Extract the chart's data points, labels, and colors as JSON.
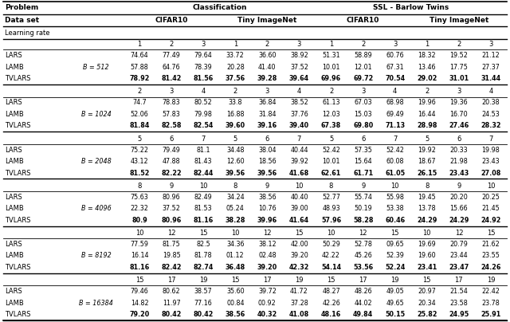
{
  "sections": [
    {
      "batch": "B = 512",
      "lr_labels": [
        "1",
        "2",
        "3",
        "1",
        "2",
        "3",
        "1",
        "2",
        "3",
        "1",
        "2",
        "3"
      ],
      "rows": [
        {
          "name": "LARS",
          "bold": false,
          "values": [
            "74.64",
            "77.49",
            "79.64",
            "33.72",
            "36.60",
            "38.92",
            "51.31",
            "58.89",
            "60.76",
            "18.32",
            "19.52",
            "21.12"
          ]
        },
        {
          "name": "LAMB",
          "bold": false,
          "values": [
            "57.88",
            "64.76",
            "78.39",
            "20.28",
            "41.40",
            "37.52",
            "10.01",
            "12.01",
            "67.31",
            "13.46",
            "17.75",
            "27.37"
          ]
        },
        {
          "name": "TVLARS",
          "bold": true,
          "values": [
            "78.92",
            "81.42",
            "81.56",
            "37.56",
            "39.28",
            "39.64",
            "69.96",
            "69.72",
            "70.54",
            "29.02",
            "31.01",
            "31.44"
          ]
        }
      ]
    },
    {
      "batch": "B = 1024",
      "lr_labels": [
        "2",
        "3",
        "4",
        "2",
        "3",
        "4",
        "2",
        "3",
        "4",
        "2",
        "3",
        "4"
      ],
      "rows": [
        {
          "name": "LARS",
          "bold": false,
          "values": [
            "74.7",
            "78.83",
            "80.52",
            "33.8",
            "36.84",
            "38.52",
            "61.13",
            "67.03",
            "68.98",
            "19.96",
            "19.36",
            "20.38"
          ]
        },
        {
          "name": "LAMB",
          "bold": false,
          "values": [
            "52.06",
            "57.83",
            "79.98",
            "16.88",
            "31.84",
            "37.76",
            "12.03",
            "15.03",
            "69.49",
            "16.44",
            "16.70",
            "24.53"
          ]
        },
        {
          "name": "TVLARS",
          "bold": true,
          "values": [
            "81.84",
            "82.58",
            "82.54",
            "39.60",
            "39.16",
            "39.40",
            "67.38",
            "69.80",
            "71.13",
            "28.98",
            "27.46",
            "28.32"
          ]
        }
      ]
    },
    {
      "batch": "B = 2048",
      "lr_labels": [
        "5",
        "6",
        "7",
        "5",
        "6",
        "7",
        "5",
        "6",
        "7",
        "5",
        "6",
        "7"
      ],
      "rows": [
        {
          "name": "LARS",
          "bold": false,
          "values": [
            "75.22",
            "79.49",
            "81.1",
            "34.48",
            "38.04",
            "40.44",
            "52.42",
            "57.35",
            "52.42",
            "19.92",
            "20.33",
            "19.98"
          ]
        },
        {
          "name": "LAMB",
          "bold": false,
          "values": [
            "43.12",
            "47.88",
            "81.43",
            "12.60",
            "18.56",
            "39.92",
            "10.01",
            "15.64",
            "60.08",
            "18.67",
            "21.98",
            "23.43"
          ]
        },
        {
          "name": "TVLARS",
          "bold": true,
          "values": [
            "81.52",
            "82.22",
            "82.44",
            "39.56",
            "39.56",
            "41.68",
            "62.61",
            "61.71",
            "61.05",
            "26.15",
            "23.43",
            "27.08"
          ]
        }
      ]
    },
    {
      "batch": "B = 4096",
      "lr_labels": [
        "8",
        "9",
        "10",
        "8",
        "9",
        "10",
        "8",
        "9",
        "10",
        "8",
        "9",
        "10"
      ],
      "rows": [
        {
          "name": "LARS",
          "bold": false,
          "values": [
            "75.63",
            "80.96",
            "82.49",
            "34.24",
            "38.56",
            "40.40",
            "52.77",
            "55.74",
            "55.98",
            "19.45",
            "20.20",
            "20.25"
          ]
        },
        {
          "name": "LAMB",
          "bold": false,
          "values": [
            "22.32",
            "37.52",
            "81.53",
            "05.24",
            "10.76",
            "39.00",
            "48.93",
            "50.19",
            "53.38",
            "13.78",
            "15.66",
            "21.45"
          ]
        },
        {
          "name": "TVLARS",
          "bold": true,
          "values": [
            "80.9",
            "80.96",
            "81.16",
            "38.28",
            "39.96",
            "41.64",
            "57.96",
            "58.28",
            "60.46",
            "24.29",
            "24.29",
            "24.92"
          ]
        }
      ]
    },
    {
      "batch": "B = 8192",
      "lr_labels": [
        "10",
        "12",
        "15",
        "10",
        "12",
        "15",
        "10",
        "12",
        "15",
        "10",
        "12",
        "15"
      ],
      "rows": [
        {
          "name": "LARS",
          "bold": false,
          "values": [
            "77.59",
            "81.75",
            "82.5",
            "34.36",
            "38.12",
            "42.00",
            "50.29",
            "52.78",
            "09.65",
            "19.69",
            "20.79",
            "21.62"
          ]
        },
        {
          "name": "LAMB",
          "bold": false,
          "values": [
            "16.14",
            "19.85",
            "81.78",
            "01.12",
            "02.48",
            "39.20",
            "42.22",
            "45.26",
            "52.39",
            "19.60",
            "23.44",
            "23.55"
          ]
        },
        {
          "name": "TVLARS",
          "bold": true,
          "values": [
            "81.16",
            "82.42",
            "82.74",
            "36.48",
            "39.20",
            "42.32",
            "54.14",
            "53.56",
            "52.24",
            "23.41",
            "23.47",
            "24.26"
          ]
        }
      ]
    },
    {
      "batch": "B = 16384",
      "lr_labels": [
        "15",
        "17",
        "19",
        "15",
        "17",
        "19",
        "15",
        "17",
        "19",
        "15",
        "17",
        "19"
      ],
      "rows": [
        {
          "name": "LARS",
          "bold": false,
          "values": [
            "79.46",
            "80.62",
            "38.57",
            "35.60",
            "39.72",
            "41.72",
            "48.27",
            "48.26",
            "49.05",
            "20.97",
            "21.54",
            "22.42"
          ]
        },
        {
          "name": "LAMB",
          "bold": false,
          "values": [
            "14.82",
            "11.97",
            "77.16",
            "00.84",
            "00.92",
            "37.28",
            "42.26",
            "44.02",
            "49.65",
            "20.34",
            "23.58",
            "23.78"
          ]
        },
        {
          "name": "TVLARS",
          "bold": true,
          "values": [
            "79.20",
            "80.42",
            "80.42",
            "38.56",
            "40.32",
            "41.08",
            "48.16",
            "49.84",
            "50.15",
            "25.82",
            "24.95",
            "25.91"
          ]
        }
      ]
    }
  ]
}
